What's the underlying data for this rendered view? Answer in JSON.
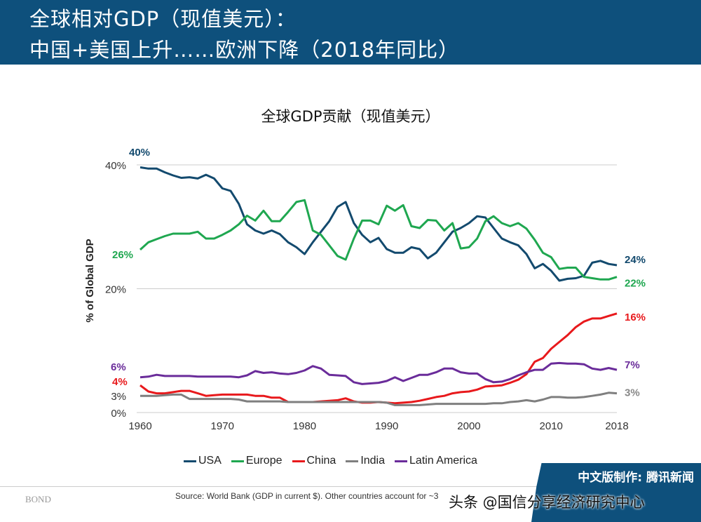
{
  "header": {
    "line1": "全球相对GDP（现值美元）：",
    "line2": "中国+美国上升……欧洲下降（2018年同比）"
  },
  "footer": {
    "logo": "BOND",
    "source": "Source: World Bank (GDP in current $). Other countries account for ~3",
    "badge": "中文版制作: 腾讯新闻",
    "watermark": "头条 @国信分享经济研究中心"
  },
  "chart_data": {
    "type": "line",
    "title": "全球GDP贡献（现值美元）",
    "ylabel": "% of Global GDP",
    "ylim": [
      0,
      40
    ],
    "yticks": [
      {
        "v": 40,
        "label": "40%"
      },
      {
        "v": 20,
        "label": "20%"
      },
      {
        "v": 2.7,
        "label": "3%"
      },
      {
        "v": 0,
        "label": "0%"
      }
    ],
    "xticks": [
      "1960",
      "1970",
      "1980",
      "1990",
      "2000",
      "2010",
      "2018"
    ],
    "grid": true,
    "legend": "bottom",
    "x_start": 1960,
    "series": [
      {
        "name": "USA",
        "color": "#134a6e",
        "start_label": "40%",
        "end_label": "24%",
        "values": [
          39.6,
          39.4,
          39.4,
          38.8,
          38.3,
          37.9,
          38.0,
          37.8,
          38.4,
          37.8,
          36.2,
          35.8,
          33.7,
          30.4,
          29.4,
          28.9,
          29.4,
          28.8,
          27.5,
          26.7,
          25.6,
          27.5,
          29.2,
          30.9,
          33.2,
          34.0,
          30.6,
          28.7,
          27.5,
          28.2,
          26.4,
          25.8,
          25.8,
          26.7,
          26.4,
          24.9,
          25.8,
          27.5,
          29.2,
          29.8,
          30.6,
          31.7,
          31.5,
          29.8,
          28.1,
          27.5,
          27.0,
          25.6,
          23.3,
          24.0,
          22.9,
          21.3,
          21.6,
          21.7,
          22.1,
          24.2,
          24.5,
          24.0,
          23.8
        ]
      },
      {
        "name": "Europe",
        "color": "#1fa750",
        "start_label": "26%",
        "end_label": "22%",
        "values": [
          26.3,
          27.5,
          28.0,
          28.5,
          28.9,
          28.9,
          28.9,
          29.2,
          28.1,
          28.1,
          28.7,
          29.4,
          30.4,
          31.8,
          31.0,
          32.6,
          30.9,
          30.9,
          32.4,
          34.0,
          34.3,
          29.4,
          28.7,
          27.0,
          25.3,
          24.7,
          28.1,
          31.0,
          31.0,
          30.4,
          33.4,
          32.6,
          33.5,
          30.1,
          29.8,
          31.1,
          31.0,
          29.4,
          30.6,
          26.5,
          26.7,
          28.1,
          30.9,
          31.7,
          30.6,
          30.1,
          30.6,
          29.7,
          27.9,
          25.8,
          25.1,
          23.2,
          23.4,
          23.4,
          21.9,
          21.7,
          21.5,
          21.5,
          21.9
        ]
      },
      {
        "name": "China",
        "color": "#e8191c",
        "start_label": "4%",
        "end_label": "16%",
        "values": [
          4.4,
          3.4,
          3.1,
          3.1,
          3.3,
          3.5,
          3.5,
          3.1,
          2.7,
          2.8,
          2.9,
          2.9,
          2.9,
          2.9,
          2.7,
          2.7,
          2.4,
          2.4,
          1.7,
          1.7,
          1.7,
          1.7,
          1.8,
          1.9,
          2.0,
          2.3,
          1.8,
          1.6,
          1.6,
          1.7,
          1.6,
          1.5,
          1.6,
          1.7,
          1.9,
          2.2,
          2.5,
          2.7,
          3.1,
          3.3,
          3.4,
          3.7,
          4.2,
          4.3,
          4.4,
          4.8,
          5.3,
          6.2,
          8.2,
          8.8,
          10.3,
          11.4,
          12.5,
          13.8,
          14.7,
          15.2,
          15.2,
          15.6,
          16.0
        ]
      },
      {
        "name": "India",
        "color": "#7f7f7f",
        "start_label": "",
        "end_label": "3%",
        "values": [
          2.7,
          2.7,
          2.7,
          2.8,
          2.9,
          2.9,
          2.2,
          2.2,
          2.2,
          2.2,
          2.2,
          2.2,
          2.1,
          1.8,
          1.8,
          1.8,
          1.8,
          1.8,
          1.7,
          1.7,
          1.7,
          1.7,
          1.7,
          1.7,
          1.7,
          1.7,
          1.7,
          1.7,
          1.7,
          1.7,
          1.6,
          1.2,
          1.2,
          1.2,
          1.2,
          1.3,
          1.4,
          1.4,
          1.4,
          1.4,
          1.4,
          1.4,
          1.4,
          1.5,
          1.5,
          1.7,
          1.8,
          2.0,
          1.8,
          2.1,
          2.5,
          2.5,
          2.4,
          2.4,
          2.5,
          2.7,
          2.9,
          3.2,
          3.1
        ]
      },
      {
        "name": "Latin America",
        "color": "#6a2c9a",
        "start_label": "6%",
        "end_label": "7%",
        "values": [
          5.7,
          5.8,
          6.1,
          5.9,
          5.9,
          5.9,
          5.9,
          5.8,
          5.8,
          5.8,
          5.8,
          5.8,
          5.7,
          6.0,
          6.7,
          6.4,
          6.5,
          6.3,
          6.2,
          6.4,
          6.8,
          7.5,
          7.1,
          6.1,
          6.0,
          5.9,
          4.9,
          4.6,
          4.7,
          4.8,
          5.1,
          5.7,
          5.1,
          5.6,
          6.1,
          6.1,
          6.5,
          7.1,
          7.1,
          6.5,
          6.3,
          6.3,
          5.4,
          4.9,
          5.0,
          5.4,
          6.0,
          6.5,
          6.9,
          6.9,
          7.9,
          8.0,
          7.9,
          7.9,
          7.8,
          7.1,
          6.9,
          7.2,
          6.9
        ]
      }
    ]
  }
}
